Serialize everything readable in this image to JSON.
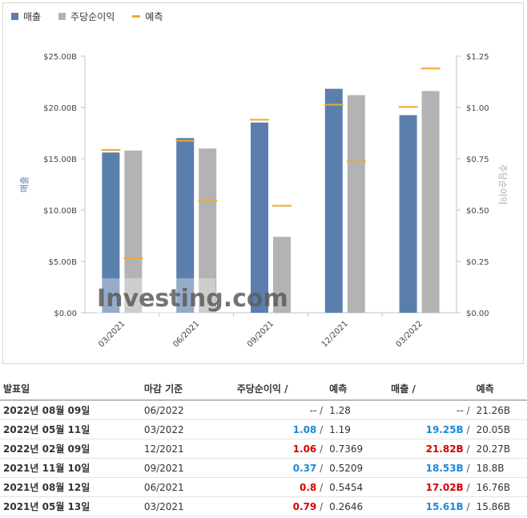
{
  "legend": [
    {
      "label": "매출",
      "color": "#5b7fad",
      "kind": "box"
    },
    {
      "label": "주당순이익",
      "color": "#b3b3b3",
      "kind": "box"
    },
    {
      "label": "예측",
      "color": "#f0a830",
      "kind": "line"
    }
  ],
  "chart_data": {
    "type": "bar",
    "categories": [
      "03/2021",
      "06/2021",
      "09/2021",
      "12/2021",
      "03/2022"
    ],
    "series": [
      {
        "name": "매출",
        "axis": "left",
        "values": [
          15.61,
          17.02,
          18.53,
          21.82,
          19.25
        ],
        "forecast": [
          15.86,
          16.76,
          18.8,
          20.27,
          20.05
        ],
        "color": "#5b7fad"
      },
      {
        "name": "주당순이익",
        "axis": "right",
        "values": [
          0.79,
          0.8,
          0.37,
          1.06,
          1.08
        ],
        "forecast": [
          0.2646,
          0.5454,
          0.5209,
          0.7369,
          1.19
        ],
        "color": "#b3b3b3"
      }
    ],
    "forecast_color": "#f0a830",
    "ylabel_left": "매출",
    "ylabel_right": "주당순이익",
    "ylim_left": [
      0,
      25
    ],
    "ylim_right": [
      0,
      1.25
    ],
    "yticks_left": [
      "$0.00",
      "$5.00B",
      "$10.00B",
      "$15.00B",
      "$20.00B",
      "$25.00B"
    ],
    "yticks_right": [
      "$0.00",
      "$0.25",
      "$0.50",
      "$0.75",
      "$1.00",
      "$1.25"
    ],
    "watermark": "Investing.com"
  },
  "table": {
    "headers": {
      "date": "발표일",
      "period": "마감 기준",
      "eps": "주당순이익",
      "eps_forecast": "예측",
      "revenue": "매출",
      "revenue_forecast": "예측",
      "sep": "/"
    },
    "rows": [
      {
        "date": "2022년 08월 09일",
        "period": "06/2022",
        "eps": "--",
        "eps_cls": "neu",
        "eps_forecast": "1.28",
        "revenue": "--",
        "rev_cls": "neu",
        "revenue_forecast": "21.26B"
      },
      {
        "date": "2022년 05월 11일",
        "period": "03/2022",
        "eps": "1.08",
        "eps_cls": "pos",
        "eps_forecast": "1.19",
        "revenue": "19.25B",
        "rev_cls": "pos",
        "revenue_forecast": "20.05B"
      },
      {
        "date": "2022년 02월 09일",
        "period": "12/2021",
        "eps": "1.06",
        "eps_cls": "neg",
        "eps_forecast": "0.7369",
        "revenue": "21.82B",
        "rev_cls": "neg",
        "revenue_forecast": "20.27B"
      },
      {
        "date": "2021년 11월 10일",
        "period": "09/2021",
        "eps": "0.37",
        "eps_cls": "pos",
        "eps_forecast": "0.5209",
        "revenue": "18.53B",
        "rev_cls": "pos",
        "revenue_forecast": "18.8B"
      },
      {
        "date": "2021년 08월 12일",
        "period": "06/2021",
        "eps": "0.8",
        "eps_cls": "neg",
        "eps_forecast": "0.5454",
        "revenue": "17.02B",
        "rev_cls": "neg",
        "revenue_forecast": "16.76B"
      },
      {
        "date": "2021년 05월 13일",
        "period": "03/2021",
        "eps": "0.79",
        "eps_cls": "neg",
        "eps_forecast": "0.2646",
        "revenue": "15.61B",
        "rev_cls": "pos",
        "revenue_forecast": "15.86B"
      }
    ]
  }
}
